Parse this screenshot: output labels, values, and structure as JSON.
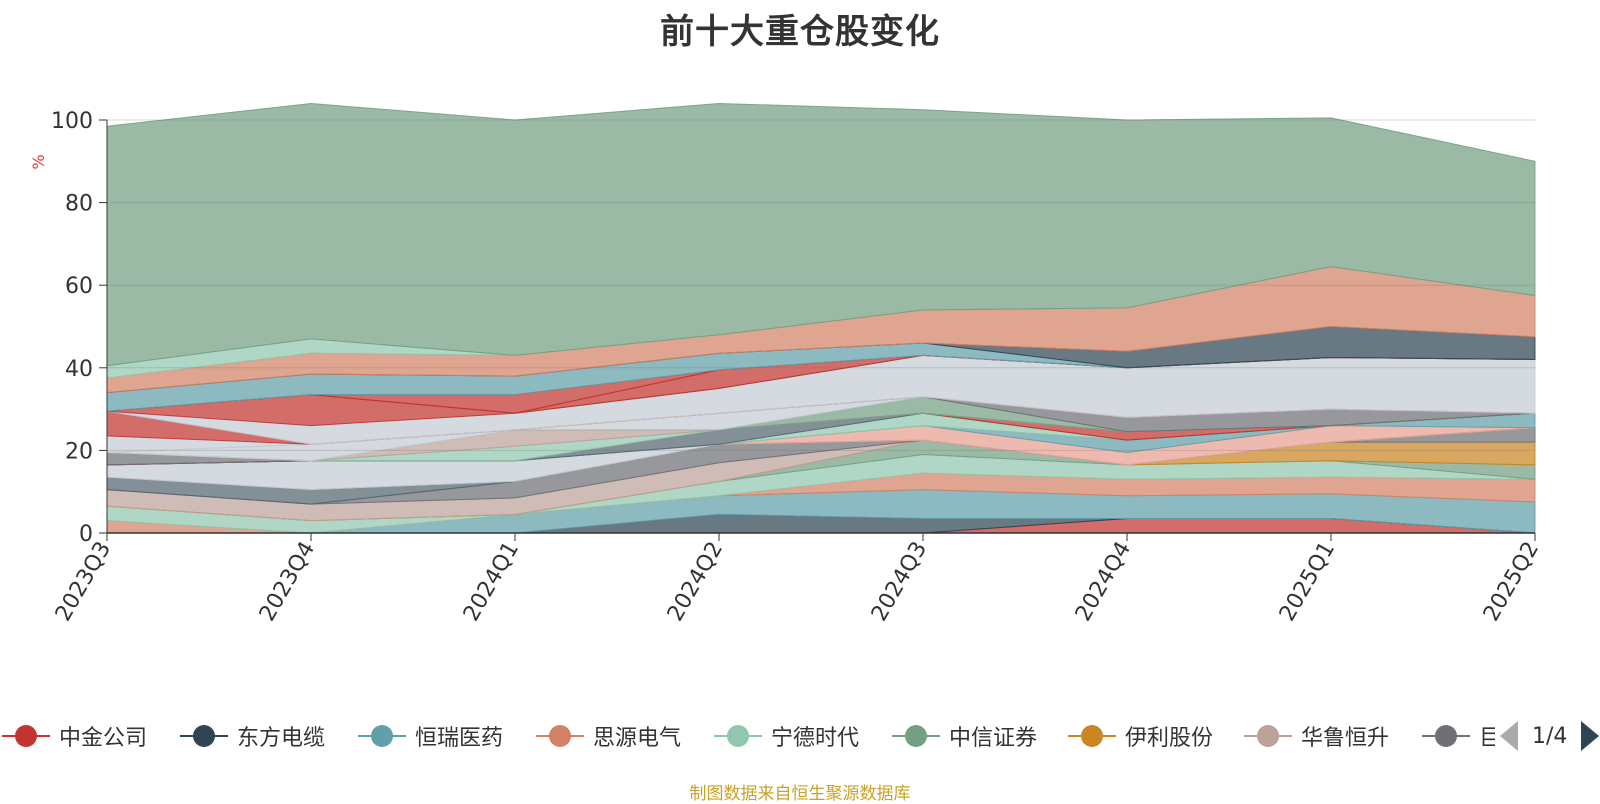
{
  "title": "前十大重仓股变化",
  "source_note": "制图数据来自恒生聚源数据库",
  "y_unit": "%",
  "pager_text": "1/4",
  "legend": [
    {
      "name": "中金公司",
      "color": "#c23531"
    },
    {
      "name": "东方电缆",
      "color": "#2f4554"
    },
    {
      "name": "恒瑞医药",
      "color": "#61a0a8"
    },
    {
      "name": "思源电气",
      "color": "#d48265"
    },
    {
      "name": "宁德时代",
      "color": "#91c7ae"
    },
    {
      "name": "中信证券",
      "color": "#749f83"
    },
    {
      "name": "伊利股份",
      "color": "#ca8622"
    },
    {
      "name": "华鲁恒升",
      "color": "#bda29a"
    },
    {
      "name": "巨",
      "color": "#6e7074"
    }
  ],
  "chart_data": {
    "type": "area",
    "stacked": true,
    "title": "前十大重仓股变化",
    "ylabel": "%",
    "ylim": [
      0,
      100
    ],
    "yticks": [
      0,
      20,
      40,
      60,
      80,
      100
    ],
    "grid": true,
    "x": [
      "2023Q3",
      "2023Q4",
      "2024Q1",
      "2024Q2",
      "2024Q3",
      "2024Q4",
      "2025Q1",
      "2025Q2"
    ],
    "series": [
      {
        "values": [
          0,
          0,
          0,
          0,
          0,
          3.5,
          3.5,
          0
        ],
        "color": "#c23531"
      },
      {
        "values": [
          0,
          0,
          0,
          4.5,
          3.5,
          0,
          0,
          0
        ],
        "color": "#2f4554"
      },
      {
        "values": [
          0,
          0,
          4.5,
          4.5,
          7,
          5.5,
          6,
          7.5
        ],
        "color": "#61a0a8"
      },
      {
        "values": [
          3,
          0,
          0,
          0,
          4,
          4,
          4,
          5.5
        ],
        "color": "#d48265"
      },
      {
        "values": [
          3.5,
          3,
          0,
          3.5,
          4.5,
          3.5,
          4,
          0
        ],
        "color": "#91c7ae"
      },
      {
        "values": [
          0,
          0,
          0,
          0,
          3.5,
          0,
          0,
          3.5
        ],
        "color": "#749f83"
      },
      {
        "values": [
          0,
          0,
          0,
          0,
          0,
          0,
          4.5,
          5.5
        ],
        "color": "#ca8622"
      },
      {
        "values": [
          4,
          4,
          4,
          4.5,
          0,
          0,
          0,
          0
        ],
        "color": "#bda29a"
      },
      {
        "values": [
          0,
          0,
          4,
          4.5,
          0,
          0,
          0,
          3.5
        ],
        "color": "#6e7074"
      },
      {
        "values": [
          3,
          3.5,
          0,
          0,
          0,
          0,
          0,
          0
        ],
        "color": "#546570"
      },
      {
        "values": [
          3,
          7,
          5,
          0,
          0,
          0,
          0,
          0
        ],
        "color": "#c4ccd3"
      },
      {
        "values": [
          0,
          0,
          0,
          0,
          3.5,
          3,
          4,
          0
        ],
        "color": "#e8a090"
      },
      {
        "values": [
          0,
          0,
          0,
          0,
          0,
          3,
          0,
          3.5
        ],
        "color": "#61a0a8"
      },
      {
        "values": [
          0,
          0,
          0,
          0,
          3,
          0,
          0,
          0
        ],
        "color": "#91c7ae"
      },
      {
        "values": [
          0,
          0,
          0,
          3.5,
          0,
          0,
          0,
          0
        ],
        "color": "#546570"
      },
      {
        "values": [
          0,
          0,
          0,
          0,
          0,
          2,
          0,
          0
        ],
        "color": "#c23531"
      },
      {
        "values": [
          3,
          0,
          0,
          0,
          0,
          0,
          0,
          0
        ],
        "color": "#6e7074"
      },
      {
        "values": [
          0,
          0,
          3.5,
          0,
          0,
          0,
          0,
          0
        ],
        "color": "#91c7ae"
      },
      {
        "values": [
          0,
          0,
          4,
          0,
          0,
          0,
          0,
          0
        ],
        "color": "#bda29a"
      },
      {
        "values": [
          0,
          0,
          0,
          0,
          4,
          0,
          0,
          0
        ],
        "color": "#749f83"
      },
      {
        "values": [
          0,
          0,
          0,
          0,
          0,
          3.5,
          4,
          0
        ],
        "color": "#6e7074"
      },
      {
        "values": [
          0,
          0,
          0,
          4,
          0,
          0,
          0,
          0
        ],
        "color": "#c4ccd3"
      },
      {
        "values": [
          0,
          4,
          0,
          0,
          0,
          0,
          0,
          0
        ],
        "color": "#c4ccd3"
      },
      {
        "values": [
          4,
          0,
          0,
          0,
          0,
          0,
          0,
          0
        ],
        "color": "#c4ccd3"
      },
      {
        "values": [
          6,
          0,
          0,
          0,
          0,
          0,
          0,
          0
        ],
        "color": "#c23531"
      },
      {
        "values": [
          0,
          4.5,
          4,
          6,
          10,
          12,
          12.5,
          13
        ],
        "color": "#c4ccd3"
      },
      {
        "values": [
          0,
          7.5,
          0,
          0,
          0,
          0,
          0,
          0
        ],
        "color": "#c23531"
      },
      {
        "values": [
          0,
          0,
          0,
          4.5,
          0,
          0,
          0,
          0
        ],
        "color": "#c23531"
      },
      {
        "values": [
          0,
          0,
          4.5,
          0,
          0,
          0,
          0,
          0
        ],
        "color": "#c23531"
      },
      {
        "values": [
          4.5,
          5,
          4.5,
          4,
          3,
          0,
          0,
          0
        ],
        "color": "#61a0a8"
      },
      {
        "values": [
          0,
          0,
          0,
          0,
          0,
          4,
          7.5,
          5.5
        ],
        "color": "#2f4554"
      },
      {
        "values": [
          3.5,
          5,
          5,
          4.5,
          8,
          10.5,
          14.5,
          10
        ],
        "color": "#d48265"
      },
      {
        "values": [
          3,
          3.5,
          0,
          0,
          0,
          0,
          0,
          0
        ],
        "color": "#91c7ae"
      },
      {
        "values": [
          58,
          57,
          57,
          56,
          48.5,
          45.5,
          36,
          32.5
        ],
        "color": "#749f83"
      }
    ]
  }
}
